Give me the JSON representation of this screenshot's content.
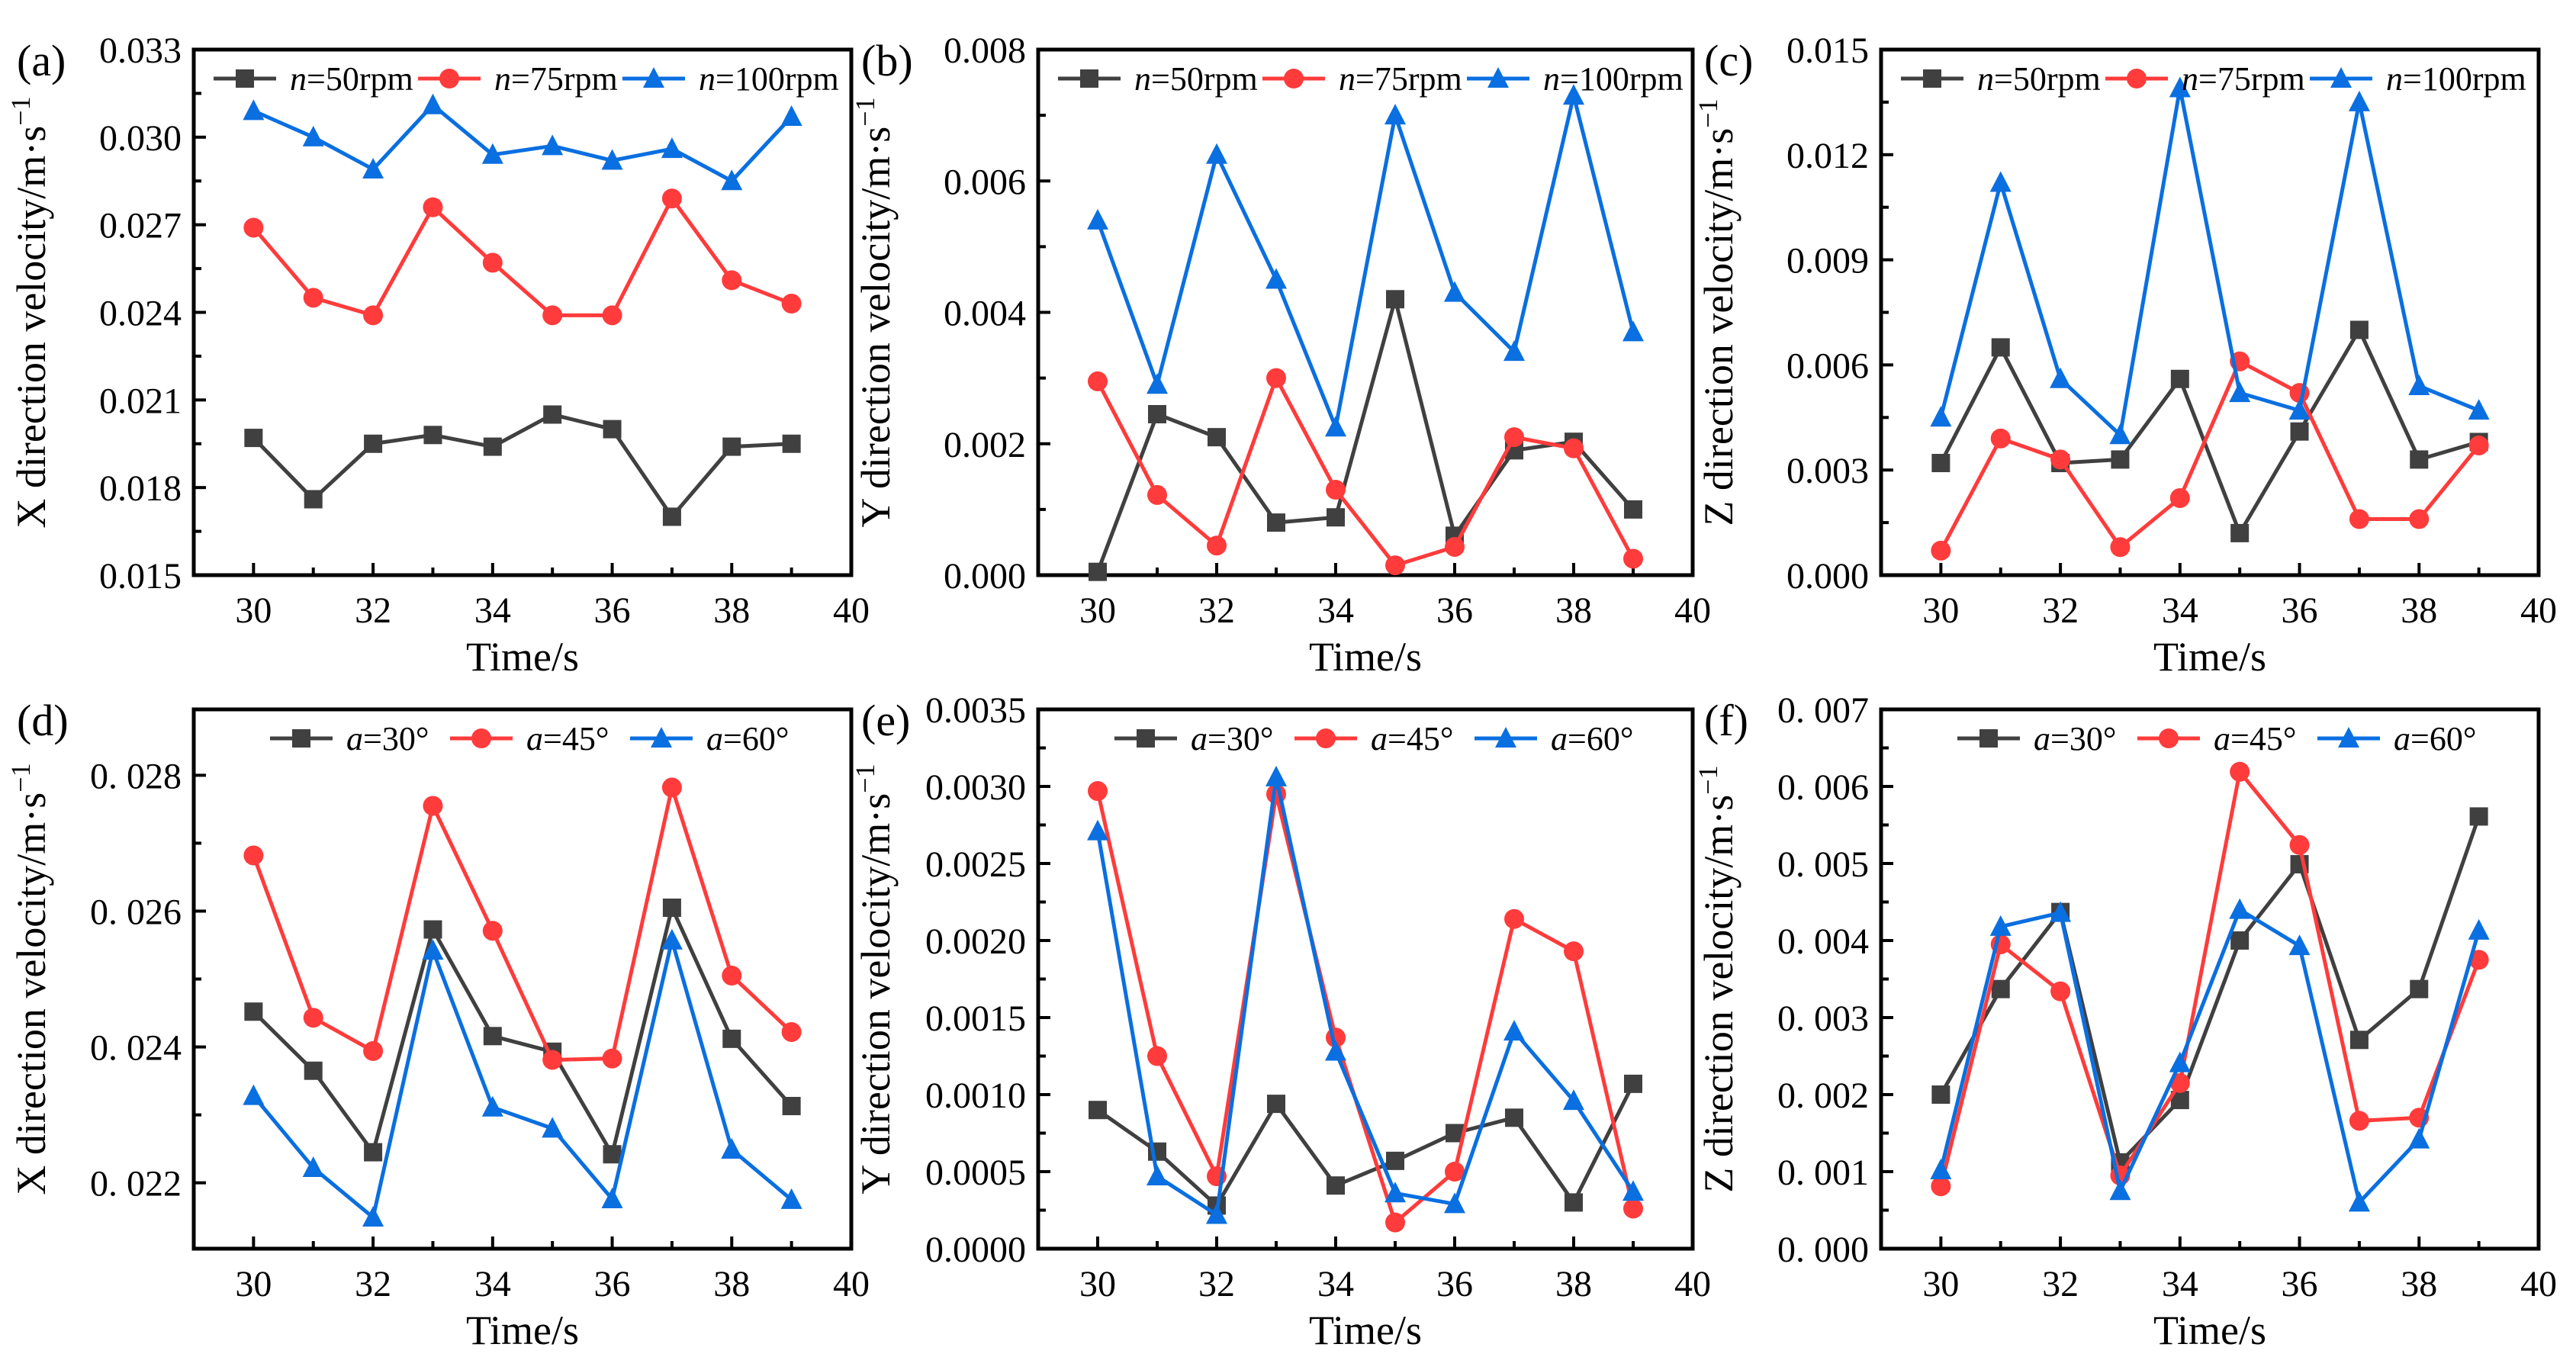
{
  "colors": {
    "series1": "#404040",
    "series2": "#ff3b3b",
    "series3": "#0a6fe0",
    "axis": "#000000"
  },
  "chart_data": [
    {
      "type": "line",
      "panel_label": "(a)",
      "xlabel": "Time/s",
      "ylabel": {
        "text": "X direction velocity/m·s",
        "sup": "−1"
      },
      "xlim": [
        29,
        40
      ],
      "xticks": [
        30,
        32,
        34,
        36,
        38,
        40
      ],
      "xtick_labels": [
        "30",
        "32",
        "34",
        "36",
        "38",
        "40"
      ],
      "ylim": [
        0.015,
        0.033
      ],
      "yticks": [
        0.015,
        0.018,
        0.021,
        0.024,
        0.027,
        0.03,
        0.033
      ],
      "ytick_labels": [
        "0.015",
        "0.018",
        "0.021",
        "0.024",
        "0.027",
        "0.030",
        "0.033"
      ],
      "legend_position": "top",
      "x": [
        30,
        31,
        32,
        33,
        34,
        35,
        36,
        37,
        38,
        39
      ],
      "series": [
        {
          "name": "n=50rpm",
          "italic": "n",
          "rest": "=50rpm",
          "marker": "square",
          "values": [
            0.0197,
            0.0176,
            0.0195,
            0.0198,
            0.0194,
            0.0205,
            0.02,
            0.017,
            0.0194,
            0.0195
          ]
        },
        {
          "name": "n=75rpm",
          "italic": "n",
          "rest": "=75rpm",
          "marker": "circle",
          "values": [
            0.0269,
            0.0245,
            0.0239,
            0.0276,
            0.0257,
            0.0239,
            0.0239,
            0.0279,
            0.0251,
            0.0243
          ]
        },
        {
          "name": "n=100rpm",
          "italic": "n",
          "rest": "=100rpm",
          "marker": "triangle",
          "values": [
            0.0309,
            0.03,
            0.0289,
            0.0311,
            0.0294,
            0.0297,
            0.0292,
            0.0296,
            0.0285,
            0.0307
          ]
        }
      ]
    },
    {
      "type": "line",
      "panel_label": "(b)",
      "xlabel": "Time/s",
      "ylabel": {
        "text": "Y direction velocity/m·s",
        "sup": "−1"
      },
      "xlim": [
        29,
        40
      ],
      "xticks": [
        30,
        32,
        34,
        36,
        38,
        40
      ],
      "xtick_labels": [
        "30",
        "32",
        "34",
        "36",
        "38",
        "40"
      ],
      "ylim": [
        0,
        0.008
      ],
      "yticks": [
        0,
        0.002,
        0.004,
        0.006,
        0.008
      ],
      "ytick_labels": [
        "0.000",
        "0.002",
        "0.004",
        "0.006",
        "0.008"
      ],
      "legend_position": "top",
      "x": [
        30,
        31,
        32,
        33,
        34,
        35,
        36,
        37,
        38,
        39
      ],
      "series": [
        {
          "name": "n=50rpm",
          "italic": "n",
          "rest": "=50rpm",
          "marker": "square",
          "values": [
            5e-05,
            0.00245,
            0.0021,
            0.0008,
            0.00088,
            0.0042,
            0.0006,
            0.0019,
            0.00203,
            0.001
          ]
        },
        {
          "name": "n=75rpm",
          "italic": "n",
          "rest": "=75rpm",
          "marker": "circle",
          "values": [
            0.00295,
            0.00122,
            0.00045,
            0.003,
            0.0013,
            0.00015,
            0.00043,
            0.0021,
            0.00193,
            0.00025
          ]
        },
        {
          "name": "n=100rpm",
          "italic": "n",
          "rest": "=100rpm",
          "marker": "triangle",
          "values": [
            0.0054,
            0.0029,
            0.0064,
            0.0045,
            0.00225,
            0.007,
            0.0043,
            0.0034,
            0.0073,
            0.0037
          ]
        }
      ]
    },
    {
      "type": "line",
      "panel_label": "(c)",
      "xlabel": "Time/s",
      "ylabel": {
        "text": "Z direction velocity/m·s",
        "sup": "−1"
      },
      "xlim": [
        29,
        40
      ],
      "xticks": [
        30,
        32,
        34,
        36,
        38,
        40
      ],
      "xtick_labels": [
        "30",
        "32",
        "34",
        "36",
        "38",
        "40"
      ],
      "ylim": [
        0,
        0.015
      ],
      "yticks": [
        0,
        0.003,
        0.006,
        0.009,
        0.012,
        0.015
      ],
      "ytick_labels": [
        "0.000",
        "0.003",
        "0.006",
        "0.009",
        "0.012",
        "0.015"
      ],
      "legend_position": "top",
      "x": [
        30,
        31,
        32,
        33,
        34,
        35,
        36,
        37,
        38,
        39
      ],
      "series": [
        {
          "name": "n=50rpm",
          "italic": "n",
          "rest": "=50rpm",
          "marker": "square",
          "values": [
            0.0032,
            0.0065,
            0.0032,
            0.0033,
            0.0056,
            0.0012,
            0.0041,
            0.007,
            0.0033,
            0.0038
          ]
        },
        {
          "name": "n=75rpm",
          "italic": "n",
          "rest": "=75rpm",
          "marker": "circle",
          "values": [
            0.0007,
            0.0039,
            0.0033,
            0.0008,
            0.0022,
            0.0061,
            0.0052,
            0.0016,
            0.0016,
            0.0037
          ]
        },
        {
          "name": "n=100rpm",
          "italic": "n",
          "rest": "=100rpm",
          "marker": "triangle",
          "values": [
            0.0045,
            0.0112,
            0.0056,
            0.004,
            0.0139,
            0.0052,
            0.0047,
            0.0135,
            0.0054,
            0.0047
          ]
        }
      ]
    },
    {
      "type": "line",
      "panel_label": "(d)",
      "xlabel": "Time/s",
      "ylabel": {
        "text": "X direction velocity/m·s",
        "sup": "−1"
      },
      "xlim": [
        29,
        40
      ],
      "xticks": [
        30,
        32,
        34,
        36,
        38,
        40
      ],
      "xtick_labels": [
        "30",
        "32",
        "34",
        "36",
        "38",
        "40"
      ],
      "ylim": [
        0.02103,
        0.02897
      ],
      "yticks": [
        0.022,
        0.024,
        0.026,
        0.028
      ],
      "ytick_labels": [
        "0. 022",
        "0. 024",
        "0. 026",
        "0. 028"
      ],
      "legend_position": "top",
      "x": [
        30,
        31,
        32,
        33,
        34,
        35,
        36,
        37,
        38,
        39
      ],
      "series": [
        {
          "name": "a=30°",
          "italic": "a",
          "rest": "=30°",
          "marker": "square",
          "values": [
            0.02452,
            0.02365,
            0.02245,
            0.02573,
            0.02416,
            0.02393,
            0.02242,
            0.02605,
            0.02412,
            0.02313
          ]
        },
        {
          "name": "a=45°",
          "italic": "a",
          "rest": "=45°",
          "marker": "circle",
          "values": [
            0.02682,
            0.02443,
            0.02394,
            0.02755,
            0.02571,
            0.02381,
            0.02383,
            0.02782,
            0.02505,
            0.02422
          ]
        },
        {
          "name": "a=60°",
          "italic": "a",
          "rest": "=60°",
          "marker": "triangle",
          "values": [
            0.02328,
            0.02222,
            0.02149,
            0.02542,
            0.02311,
            0.0228,
            0.02176,
            0.02557,
            0.02249,
            0.02175
          ]
        }
      ]
    },
    {
      "type": "line",
      "panel_label": "(e)",
      "xlabel": "Time/s",
      "ylabel": {
        "text": "Y direction velocity/m·s",
        "sup": "−1"
      },
      "xlim": [
        29,
        40
      ],
      "xticks": [
        30,
        32,
        34,
        36,
        38,
        40
      ],
      "xtick_labels": [
        "30",
        "32",
        "34",
        "36",
        "38",
        "40"
      ],
      "ylim": [
        0,
        0.0035
      ],
      "yticks": [
        0,
        0.0005,
        0.001,
        0.0015,
        0.002,
        0.0025,
        0.003,
        0.0035
      ],
      "ytick_labels": [
        "0.0000",
        "0.0005",
        "0.0010",
        "0.0015",
        "0.0020",
        "0.0025",
        "0.0030",
        "0.0035"
      ],
      "legend_position": "top",
      "x": [
        30,
        31,
        32,
        33,
        34,
        35,
        36,
        37,
        38,
        39
      ],
      "series": [
        {
          "name": "a=30°",
          "italic": "a",
          "rest": "=30°",
          "marker": "square",
          "values": [
            0.0009,
            0.00063,
            0.00028,
            0.00094,
            0.00041,
            0.00057,
            0.00075,
            0.00085,
            0.0003,
            0.00107
          ]
        },
        {
          "name": "a=45°",
          "italic": "a",
          "rest": "=45°",
          "marker": "circle",
          "values": [
            0.00297,
            0.00125,
            0.00047,
            0.00295,
            0.00137,
            0.00017,
            0.0005,
            0.00214,
            0.00193,
            0.00026
          ]
        },
        {
          "name": "a=60°",
          "italic": "a",
          "rest": "=60°",
          "marker": "triangle",
          "values": [
            0.00271,
            0.00047,
            0.00022,
            0.00306,
            0.00128,
            0.00036,
            0.00029,
            0.00141,
            0.00096,
            0.00037
          ]
        }
      ]
    },
    {
      "type": "line",
      "panel_label": "(f)",
      "xlabel": "Time/s",
      "ylabel": {
        "text": "Z direction velocity/m·s",
        "sup": "−1"
      },
      "xlim": [
        29,
        40
      ],
      "xticks": [
        30,
        32,
        34,
        36,
        38,
        40
      ],
      "xtick_labels": [
        "30",
        "32",
        "34",
        "36",
        "38",
        "40"
      ],
      "ylim": [
        0,
        0.007
      ],
      "yticks": [
        0,
        0.001,
        0.002,
        0.003,
        0.004,
        0.005,
        0.006,
        0.007
      ],
      "ytick_labels": [
        "0. 000",
        "0. 001",
        "0. 002",
        "0. 003",
        "0. 004",
        "0. 005",
        "0. 006",
        "0. 007"
      ],
      "legend_position": "top",
      "x": [
        30,
        31,
        32,
        33,
        34,
        35,
        36,
        37,
        38,
        39
      ],
      "series": [
        {
          "name": "a=30°",
          "italic": "a",
          "rest": "=30°",
          "marker": "square",
          "values": [
            0.002,
            0.00337,
            0.00437,
            0.00112,
            0.00193,
            0.004,
            0.00499,
            0.00271,
            0.00337,
            0.00561
          ]
        },
        {
          "name": "a=45°",
          "italic": "a",
          "rest": "=45°",
          "marker": "circle",
          "values": [
            0.00081,
            0.00395,
            0.00334,
            0.00095,
            0.00215,
            0.00619,
            0.00524,
            0.00166,
            0.0017,
            0.00375
          ]
        },
        {
          "name": "a=60°",
          "italic": "a",
          "rest": "=60°",
          "marker": "triangle",
          "values": [
            0.00102,
            0.00418,
            0.00436,
            0.00075,
            0.00241,
            0.0044,
            0.00393,
            0.0006,
            0.00142,
            0.00413
          ]
        }
      ]
    }
  ]
}
